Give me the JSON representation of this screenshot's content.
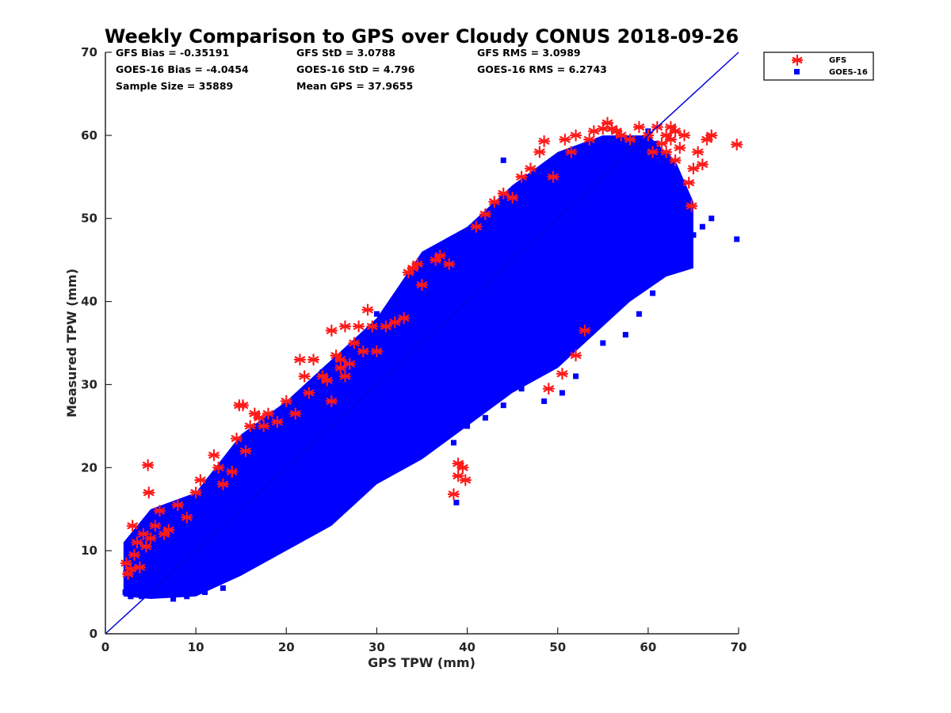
{
  "chart_data": {
    "type": "scatter",
    "title": "Weekly Comparison to GPS over Cloudy CONUS 2018-09-26",
    "xlabel": "GPS TPW (mm)",
    "ylabel": "Measured TPW (mm)",
    "xlim": [
      0,
      70
    ],
    "ylim": [
      0,
      70
    ],
    "xticks": [
      "0",
      "10",
      "20",
      "30",
      "40",
      "50",
      "60",
      "70"
    ],
    "yticks": [
      "0",
      "10",
      "20",
      "30",
      "40",
      "50",
      "60",
      "70"
    ],
    "grid": false,
    "legend_position": "outside top-right",
    "stats": [
      [
        "GFS Bias = -0.35191",
        "GFS StD = 3.0788",
        "GFS RMS = 3.0989"
      ],
      [
        "GOES-16 Bias = -4.0454",
        "GOES-16 StD = 4.796",
        "GOES-16 RMS = 6.2743"
      ],
      [
        "Sample Size = 35889",
        "Mean GPS = 37.9655"
      ]
    ],
    "reference_line": {
      "x": [
        0,
        70
      ],
      "y": [
        0,
        70
      ],
      "color": "#0000e0"
    },
    "series": [
      {
        "name": "GFS",
        "marker": "asterisk",
        "color": "#ff1a1a",
        "points": [
          [
            2.3,
            8.5
          ],
          [
            2.5,
            7.2
          ],
          [
            2.8,
            7.8
          ],
          [
            3.0,
            13.0
          ],
          [
            3.2,
            9.5
          ],
          [
            3.5,
            11.0
          ],
          [
            3.8,
            8.0
          ],
          [
            4.2,
            12.0
          ],
          [
            4.5,
            10.5
          ],
          [
            4.7,
            20.3
          ],
          [
            4.8,
            17.0
          ],
          [
            5.0,
            11.5
          ],
          [
            5.5,
            13.0
          ],
          [
            6.0,
            14.8
          ],
          [
            6.5,
            12.0
          ],
          [
            7.0,
            12.5
          ],
          [
            8.0,
            15.5
          ],
          [
            9.0,
            14.0
          ],
          [
            10.0,
            17.0
          ],
          [
            10.5,
            18.5
          ],
          [
            12.0,
            21.5
          ],
          [
            12.5,
            20.0
          ],
          [
            13.0,
            18.0
          ],
          [
            14.0,
            19.5
          ],
          [
            14.5,
            23.5
          ],
          [
            14.8,
            27.5
          ],
          [
            15.2,
            27.5
          ],
          [
            15.5,
            22.0
          ],
          [
            16.0,
            25.0
          ],
          [
            16.5,
            26.5
          ],
          [
            17.0,
            26.0
          ],
          [
            17.5,
            25.0
          ],
          [
            18.0,
            26.5
          ],
          [
            19.0,
            25.5
          ],
          [
            20.0,
            28.0
          ],
          [
            21.0,
            26.5
          ],
          [
            21.5,
            33.0
          ],
          [
            22.0,
            31.0
          ],
          [
            22.5,
            29.0
          ],
          [
            23.0,
            33.0
          ],
          [
            24.0,
            31.0
          ],
          [
            24.5,
            30.5
          ],
          [
            25.0,
            28.0
          ],
          [
            25.0,
            36.5
          ],
          [
            25.5,
            33.5
          ],
          [
            26.0,
            33.0
          ],
          [
            26.0,
            32.0
          ],
          [
            26.5,
            31.0
          ],
          [
            26.5,
            37.0
          ],
          [
            27.0,
            32.5
          ],
          [
            27.5,
            35.0
          ],
          [
            28.0,
            37.0
          ],
          [
            28.5,
            34.0
          ],
          [
            29.0,
            39.0
          ],
          [
            29.5,
            37.0
          ],
          [
            30.0,
            34.0
          ],
          [
            31.0,
            37.0
          ],
          [
            32.0,
            37.5
          ],
          [
            33.0,
            38.0
          ],
          [
            33.5,
            43.5
          ],
          [
            34.0,
            44.0
          ],
          [
            34.5,
            44.5
          ],
          [
            35.0,
            42.0
          ],
          [
            36.5,
            45.0
          ],
          [
            37.0,
            45.5
          ],
          [
            38.0,
            44.5
          ],
          [
            38.5,
            16.8
          ],
          [
            39.0,
            20.5
          ],
          [
            39.0,
            19.0
          ],
          [
            39.5,
            20.0
          ],
          [
            39.8,
            18.5
          ],
          [
            41.0,
            49.0
          ],
          [
            42.0,
            50.5
          ],
          [
            43.0,
            52.0
          ],
          [
            44.0,
            53.0
          ],
          [
            45.0,
            52.5
          ],
          [
            46.0,
            55.0
          ],
          [
            47.0,
            56.0
          ],
          [
            48.0,
            58.0
          ],
          [
            48.5,
            59.3
          ],
          [
            49.0,
            29.5
          ],
          [
            49.5,
            55.0
          ],
          [
            50.5,
            31.3
          ],
          [
            50.8,
            59.5
          ],
          [
            51.5,
            58.0
          ],
          [
            52.0,
            60.0
          ],
          [
            52.0,
            33.5
          ],
          [
            53.0,
            36.5
          ],
          [
            53.5,
            59.5
          ],
          [
            54.0,
            60.5
          ],
          [
            55.0,
            60.8
          ],
          [
            55.5,
            61.5
          ],
          [
            56.0,
            60.8
          ],
          [
            56.5,
            60.5
          ],
          [
            57.0,
            60.0
          ],
          [
            58.0,
            59.5
          ],
          [
            59.0,
            61.0
          ],
          [
            60.0,
            60.0
          ],
          [
            60.5,
            58.0
          ],
          [
            61.0,
            61.0
          ],
          [
            61.5,
            59.0
          ],
          [
            62.0,
            60.0
          ],
          [
            62.0,
            58.0
          ],
          [
            62.5,
            61.0
          ],
          [
            62.5,
            59.5
          ],
          [
            63.0,
            60.5
          ],
          [
            63.0,
            57.0
          ],
          [
            63.5,
            58.5
          ],
          [
            64.0,
            60.0
          ],
          [
            64.5,
            54.3
          ],
          [
            64.8,
            51.5
          ],
          [
            65.0,
            56.0
          ],
          [
            65.5,
            58.0
          ],
          [
            66.0,
            56.5
          ],
          [
            66.5,
            59.5
          ],
          [
            67.0,
            60.0
          ],
          [
            69.8,
            58.9
          ]
        ]
      },
      {
        "name": "GOES-16",
        "marker": "square",
        "color": "#0000ff",
        "points": [
          [
            2.2,
            5.0
          ],
          [
            2.8,
            4.5
          ],
          [
            3.5,
            6.0
          ],
          [
            4.0,
            4.5
          ],
          [
            4.5,
            8.0
          ],
          [
            5.0,
            6.5
          ],
          [
            6.0,
            5.0
          ],
          [
            7.0,
            6.0
          ],
          [
            8.0,
            5.5
          ],
          [
            9.0,
            7.0
          ],
          [
            10.0,
            8.0
          ],
          [
            11.0,
            9.0
          ],
          [
            12.0,
            10.0
          ],
          [
            13.0,
            11.0
          ],
          [
            14.0,
            12.0
          ],
          [
            15.0,
            13.0
          ],
          [
            16.0,
            14.5
          ],
          [
            17.0,
            15.0
          ],
          [
            18.0,
            16.0
          ],
          [
            19.0,
            18.0
          ],
          [
            20.0,
            17.0
          ],
          [
            21.0,
            19.0
          ],
          [
            22.0,
            20.0
          ],
          [
            23.0,
            21.0
          ],
          [
            24.0,
            22.0
          ],
          [
            25.0,
            23.0
          ],
          [
            26.0,
            24.0
          ],
          [
            27.0,
            25.0
          ],
          [
            28.0,
            26.0
          ],
          [
            29.0,
            27.0
          ],
          [
            30.0,
            28.0
          ],
          [
            31.0,
            29.0
          ],
          [
            32.0,
            30.0
          ],
          [
            33.0,
            31.0
          ],
          [
            34.0,
            32.0
          ],
          [
            35.0,
            33.0
          ],
          [
            36.0,
            34.0
          ],
          [
            37.0,
            35.0
          ],
          [
            38.0,
            36.0
          ],
          [
            39.0,
            37.0
          ],
          [
            40.0,
            38.0
          ],
          [
            41.0,
            39.0
          ],
          [
            42.0,
            40.0
          ],
          [
            43.0,
            41.0
          ],
          [
            44.0,
            42.0
          ],
          [
            45.0,
            43.0
          ],
          [
            46.0,
            44.0
          ],
          [
            47.0,
            45.0
          ],
          [
            48.0,
            46.0
          ],
          [
            49.0,
            47.0
          ],
          [
            50.0,
            48.0
          ],
          [
            51.0,
            49.0
          ],
          [
            52.0,
            50.0
          ],
          [
            53.0,
            51.0
          ],
          [
            54.0,
            52.0
          ],
          [
            55.0,
            53.0
          ],
          [
            56.0,
            54.0
          ],
          [
            57.0,
            55.0
          ],
          [
            58.0,
            56.0
          ],
          [
            59.0,
            57.0
          ],
          [
            60.0,
            58.0
          ],
          [
            61.0,
            59.0
          ],
          [
            62.0,
            57.0
          ],
          [
            63.0,
            55.0
          ],
          [
            64.0,
            52.0
          ],
          [
            65.0,
            48.0
          ],
          [
            66.0,
            49.0
          ],
          [
            67.0,
            50.0
          ],
          [
            69.8,
            47.5
          ],
          [
            64.5,
            46.0
          ],
          [
            63.5,
            45.0
          ],
          [
            62.0,
            44.0
          ],
          [
            60.5,
            41.0
          ],
          [
            59.0,
            38.5
          ],
          [
            57.5,
            36.0
          ],
          [
            55.0,
            35.0
          ],
          [
            52.0,
            31.0
          ],
          [
            50.5,
            29.0
          ],
          [
            48.5,
            28.0
          ],
          [
            46.0,
            29.5
          ],
          [
            44.0,
            27.5
          ],
          [
            42.0,
            26.0
          ],
          [
            40.0,
            25.0
          ],
          [
            38.5,
            23.0
          ],
          [
            36.5,
            24.0
          ],
          [
            34.5,
            23.5
          ],
          [
            33.0,
            22.0
          ],
          [
            31.0,
            20.0
          ],
          [
            29.0,
            18.0
          ],
          [
            27.0,
            17.0
          ],
          [
            25.0,
            15.0
          ],
          [
            23.0,
            14.0
          ],
          [
            21.0,
            12.0
          ],
          [
            19.0,
            11.0
          ],
          [
            17.0,
            9.0
          ],
          [
            15.0,
            8.0
          ],
          [
            13.0,
            5.5
          ],
          [
            11.0,
            5.0
          ],
          [
            9.0,
            4.5
          ],
          [
            7.5,
            4.2
          ],
          [
            44.0,
            57.0
          ],
          [
            37.0,
            45.0
          ],
          [
            30.0,
            38.5
          ],
          [
            24.0,
            31.5
          ],
          [
            18.0,
            24.5
          ],
          [
            12.0,
            18.0
          ],
          [
            6.0,
            13.0
          ],
          [
            3.0,
            10.0
          ],
          [
            38.8,
            15.8
          ],
          [
            48.0,
            55.5
          ],
          [
            52.0,
            58.0
          ],
          [
            56.0,
            59.0
          ],
          [
            60.0,
            60.5
          ],
          [
            35.0,
            43.0
          ],
          [
            33.0,
            42.0
          ],
          [
            27.0,
            34.0
          ],
          [
            22.0,
            28.0
          ],
          [
            16.0,
            22.0
          ],
          [
            10.0,
            15.5
          ],
          [
            7.0,
            11.0
          ]
        ]
      }
    ]
  }
}
